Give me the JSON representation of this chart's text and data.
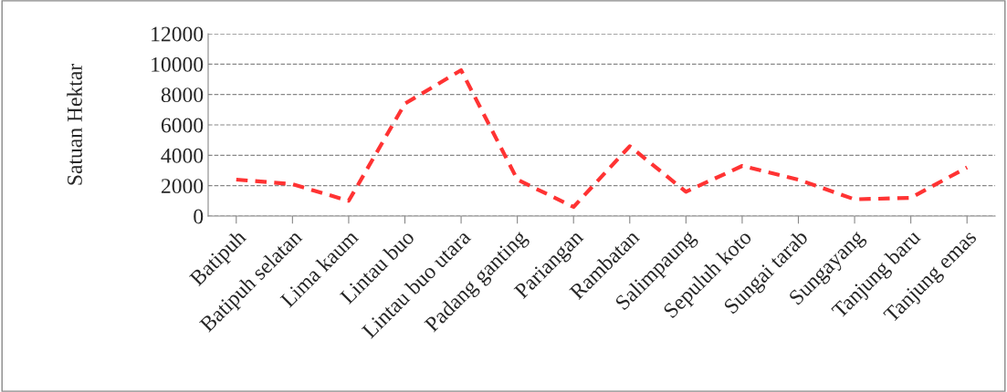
{
  "chart_data": {
    "type": "line",
    "ylabel": "Satuan Hektar",
    "categories": [
      "Batipuh",
      "Batipuh selatan",
      "Lima kaum",
      "Lintau buo",
      "Lintau buo utara",
      "Padang ganting",
      "Pariangan",
      "Rambatan",
      "Salimpaung",
      "Sepuluh koto",
      "Sungai tarab",
      "Sungayang",
      "Tanjung baru",
      "Tanjung emas"
    ],
    "series": [
      {
        "color": "#ff3333",
        "values": [
          2400,
          2100,
          1000,
          7400,
          9600,
          2400,
          600,
          4600,
          1600,
          3300,
          2400,
          1100,
          1200,
          3200
        ]
      }
    ],
    "ylim": [
      0,
      12000
    ],
    "yticks": [
      0,
      2000,
      4000,
      6000,
      8000,
      10000,
      12000
    ],
    "grid": "y",
    "line_style": "dashed",
    "marker": "none"
  }
}
